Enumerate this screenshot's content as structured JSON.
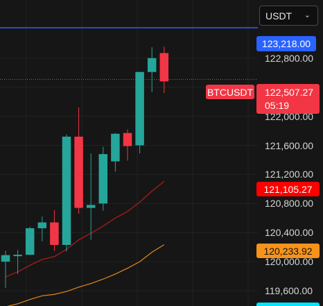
{
  "currency_select": {
    "value": "USDT",
    "icon": "chevron-down-icon"
  },
  "symbol_label": "BTCUSDT",
  "price_tags": {
    "alert_line": {
      "text": "123,218.00",
      "color": "#2962ff"
    },
    "last_price": {
      "text": "122,507.27",
      "countdown": "05:19",
      "color": "#f23645"
    },
    "ma_fast": {
      "text": "121,105.27",
      "color": "#ff0000"
    },
    "ma_slow": {
      "text": "120,233.92",
      "color": "#f7931a"
    },
    "bottom_cyan": {
      "color": "#00e5ff"
    }
  },
  "chart_data": {
    "type": "candlestick",
    "y_ticks": [
      "122,800.00",
      "122,400.00",
      "122,000.00",
      "121,600.00",
      "121,200.00",
      "120,800.00",
      "120,400.00",
      "120,000.00",
      "119,600.00"
    ],
    "y_tick_values": [
      122800,
      122400,
      122000,
      121600,
      121200,
      120800,
      120400,
      120000,
      119600
    ],
    "y_range": [
      119390,
      123600
    ],
    "alert_price": 123218,
    "last_price": 122507.27,
    "colors": {
      "up": "#26a69a",
      "down": "#f23645",
      "ma_fast": "#b71c1c",
      "ma_slow": "#e68a1a",
      "alert": "#2962ff"
    },
    "candles": [
      {
        "open": 120000,
        "high": 120150,
        "low": 119640,
        "close": 120090
      },
      {
        "open": 120090,
        "high": 120160,
        "low": 119830,
        "close": 120095
      },
      {
        "open": 120095,
        "high": 120480,
        "low": 120090,
        "close": 120460
      },
      {
        "open": 120460,
        "high": 120620,
        "low": 120280,
        "close": 120540
      },
      {
        "open": 120540,
        "high": 120710,
        "low": 120150,
        "close": 120230
      },
      {
        "open": 120230,
        "high": 121750,
        "low": 120140,
        "close": 121720
      },
      {
        "open": 121720,
        "high": 122120,
        "low": 120660,
        "close": 120740
      },
      {
        "open": 120740,
        "high": 121490,
        "low": 120300,
        "close": 120780
      },
      {
        "open": 120800,
        "high": 121580,
        "low": 120700,
        "close": 121480
      },
      {
        "open": 121380,
        "high": 121770,
        "low": 121240,
        "close": 121760
      },
      {
        "open": 121770,
        "high": 121820,
        "low": 121390,
        "close": 121590
      },
      {
        "open": 121600,
        "high": 122610,
        "low": 121490,
        "close": 122610
      },
      {
        "open": 122610,
        "high": 122950,
        "low": 122330,
        "close": 122800
      },
      {
        "open": 122870,
        "high": 122960,
        "low": 122320,
        "close": 122480
      }
    ],
    "ma_fast_values": [
      119790,
      119860,
      119950,
      120030,
      120070,
      120170,
      120300,
      120390,
      120490,
      120600,
      120690,
      120820,
      120970,
      121105.27
    ],
    "ma_slow_values": [
      119380,
      119420,
      119480,
      119530,
      119550,
      119590,
      119650,
      119700,
      119760,
      119830,
      119910,
      120000,
      120130,
      120233.92
    ]
  }
}
